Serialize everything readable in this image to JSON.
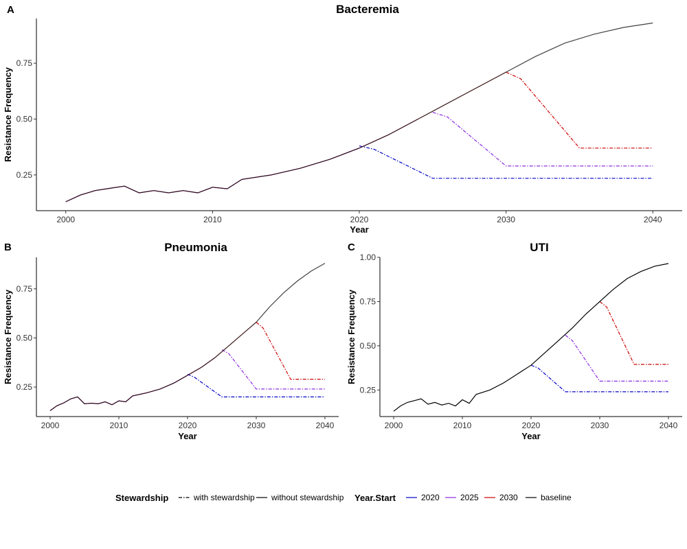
{
  "colors": {
    "2020": "#0000cc",
    "2025": "#8a2be2",
    "2030": "#cc0000",
    "baseline": "#000000"
  },
  "legend": {
    "stewardship_title": "Stewardship",
    "stewardship_items": [
      {
        "label": "with stewardship",
        "dash": "dotdash"
      },
      {
        "label": "without stewardship",
        "dash": "solid"
      }
    ],
    "year_start_title": "Year.Start",
    "year_start_items": [
      {
        "label": "2020",
        "color_key": "2020"
      },
      {
        "label": "2025",
        "color_key": "2025"
      },
      {
        "label": "2030",
        "color_key": "2030"
      },
      {
        "label": "baseline",
        "color_key": "baseline"
      }
    ]
  },
  "chart_data": [
    {
      "type": "line",
      "panel": "A",
      "title": "Bacteremia",
      "xlabel": "Year",
      "ylabel": "Resistance Frequency",
      "xlim": [
        1998,
        2042
      ],
      "ylim": [
        0.09,
        0.95
      ],
      "xticks": [
        2000,
        2010,
        2020,
        2030,
        2040
      ],
      "yticks": [
        0.25,
        0.5,
        0.75
      ],
      "ytick_labels": [
        "0.25",
        "0.50",
        "0.75"
      ],
      "grid": false,
      "baseline": {
        "x": [
          2000,
          2001,
          2002,
          2003,
          2004,
          2005,
          2006,
          2007,
          2008,
          2009,
          2010,
          2011,
          2012,
          2014,
          2016,
          2018,
          2020,
          2022,
          2024,
          2026,
          2028,
          2030,
          2032,
          2034,
          2036,
          2038,
          2040
        ],
        "y": [
          0.13,
          0.16,
          0.18,
          0.19,
          0.2,
          0.17,
          0.18,
          0.17,
          0.18,
          0.17,
          0.195,
          0.188,
          0.23,
          0.25,
          0.28,
          0.32,
          0.37,
          0.43,
          0.5,
          0.57,
          0.64,
          0.71,
          0.78,
          0.84,
          0.88,
          0.91,
          0.93
        ]
      },
      "series": [
        {
          "name": "2020",
          "start": 2020,
          "x": [
            2020,
            2021,
            2025,
            2040
          ],
          "y": [
            0.38,
            0.365,
            0.235,
            0.235
          ]
        },
        {
          "name": "2025",
          "start": 2025,
          "x": [
            2025,
            2026,
            2030,
            2040
          ],
          "y": [
            0.53,
            0.51,
            0.29,
            0.29
          ]
        },
        {
          "name": "2030",
          "start": 2030,
          "x": [
            2030,
            2031,
            2035,
            2040
          ],
          "y": [
            0.71,
            0.68,
            0.37,
            0.37
          ]
        }
      ]
    },
    {
      "type": "line",
      "panel": "B",
      "title": "Pneumonia",
      "xlabel": "Year",
      "ylabel": "Resistance Frequency",
      "xlim": [
        1998,
        2042
      ],
      "ylim": [
        0.1,
        0.91
      ],
      "xticks": [
        2000,
        2010,
        2020,
        2030,
        2040
      ],
      "yticks": [
        0.25,
        0.5,
        0.75
      ],
      "ytick_labels": [
        "0.25",
        "0.50",
        "0.75"
      ],
      "grid": false,
      "baseline": {
        "x": [
          2000,
          2001,
          2002,
          2003,
          2004,
          2005,
          2006,
          2007,
          2008,
          2009,
          2010,
          2011,
          2012,
          2014,
          2016,
          2018,
          2020,
          2022,
          2024,
          2026,
          2028,
          2030,
          2032,
          2034,
          2036,
          2038,
          2040
        ],
        "y": [
          0.13,
          0.155,
          0.17,
          0.19,
          0.2,
          0.165,
          0.168,
          0.165,
          0.175,
          0.16,
          0.18,
          0.175,
          0.205,
          0.22,
          0.24,
          0.27,
          0.31,
          0.35,
          0.4,
          0.46,
          0.52,
          0.58,
          0.66,
          0.73,
          0.79,
          0.84,
          0.88
        ]
      },
      "series": [
        {
          "name": "2020",
          "start": 2020,
          "x": [
            2020,
            2021,
            2025,
            2040
          ],
          "y": [
            0.315,
            0.3,
            0.2,
            0.2
          ]
        },
        {
          "name": "2025",
          "start": 2025,
          "x": [
            2025,
            2026,
            2030,
            2040
          ],
          "y": [
            0.44,
            0.42,
            0.24,
            0.24
          ]
        },
        {
          "name": "2030",
          "start": 2030,
          "x": [
            2030,
            2031,
            2035,
            2040
          ],
          "y": [
            0.58,
            0.55,
            0.29,
            0.29
          ]
        }
      ]
    },
    {
      "type": "line",
      "panel": "C",
      "title": "UTI",
      "xlabel": "Year",
      "ylabel": "Resistance Frequency",
      "xlim": [
        1998,
        2042
      ],
      "ylim": [
        0.1,
        1.0
      ],
      "xticks": [
        2000,
        2010,
        2020,
        2030,
        2040
      ],
      "yticks": [
        0.25,
        0.5,
        0.75,
        1.0
      ],
      "ytick_labels": [
        "0.25",
        "0.50",
        "0.75",
        "1.00"
      ],
      "grid": false,
      "baseline": {
        "x": [
          2000,
          2001,
          2002,
          2003,
          2004,
          2005,
          2006,
          2007,
          2008,
          2009,
          2010,
          2011,
          2012,
          2014,
          2016,
          2018,
          2020,
          2022,
          2024,
          2026,
          2028,
          2030,
          2032,
          2034,
          2036,
          2038,
          2040
        ],
        "y": [
          0.13,
          0.16,
          0.18,
          0.19,
          0.2,
          0.17,
          0.18,
          0.165,
          0.175,
          0.16,
          0.195,
          0.175,
          0.225,
          0.25,
          0.29,
          0.34,
          0.39,
          0.46,
          0.53,
          0.6,
          0.68,
          0.75,
          0.82,
          0.88,
          0.92,
          0.95,
          0.965
        ]
      },
      "series": [
        {
          "name": "2020",
          "start": 2020,
          "x": [
            2020,
            2021,
            2025,
            2040
          ],
          "y": [
            0.39,
            0.375,
            0.24,
            0.24
          ]
        },
        {
          "name": "2025",
          "start": 2025,
          "x": [
            2025,
            2026,
            2030,
            2040
          ],
          "y": [
            0.56,
            0.53,
            0.3,
            0.3
          ]
        },
        {
          "name": "2030",
          "start": 2030,
          "x": [
            2030,
            2031,
            2035,
            2040
          ],
          "y": [
            0.75,
            0.72,
            0.395,
            0.395
          ]
        }
      ]
    }
  ]
}
